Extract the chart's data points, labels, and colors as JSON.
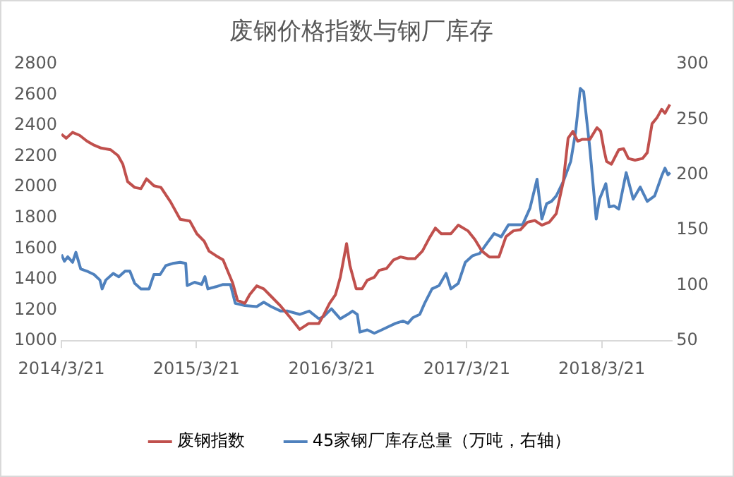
{
  "chart_data": {
    "type": "line",
    "title": "废钢价格指数与钢厂库存",
    "legend": "bottom",
    "grid": false,
    "marker": "none",
    "line_style": "solid",
    "xlim": [
      "2014-03-21",
      "2018-09-27"
    ],
    "xticks": [
      {
        "value": "2014-03-21",
        "label": "2014/3/21"
      },
      {
        "value": "2015-03-21",
        "label": "2015/3/21"
      },
      {
        "value": "2016-03-21",
        "label": "2016/3/21"
      },
      {
        "value": "2017-03-21",
        "label": "2017/3/21"
      },
      {
        "value": "2018-03-21",
        "label": "2018/3/21"
      }
    ],
    "ylim": [
      1000,
      2800
    ],
    "yticks": [
      1000,
      1200,
      1400,
      1600,
      1800,
      2000,
      2200,
      2400,
      2600,
      2800
    ],
    "y2lim": [
      50,
      300
    ],
    "y2ticks": [
      50,
      100,
      150,
      200,
      250,
      300
    ],
    "series": [
      {
        "name": "废钢指数",
        "color": "#c0504d",
        "x": [
          "2014-03-21",
          "2014-04-03",
          "2014-04-20",
          "2014-05-09",
          "2014-05-29",
          "2014-06-17",
          "2014-07-06",
          "2014-08-01",
          "2014-08-21",
          "2014-09-03",
          "2014-09-16",
          "2014-10-05",
          "2014-10-22",
          "2014-11-06",
          "2014-11-26",
          "2014-12-15",
          "2015-01-10",
          "2015-02-05",
          "2015-03-03",
          "2015-03-22",
          "2015-04-11",
          "2015-04-24",
          "2015-05-13",
          "2015-06-01",
          "2015-06-14",
          "2015-06-27",
          "2015-07-10",
          "2015-07-30",
          "2015-08-12",
          "2015-08-31",
          "2015-09-19",
          "2015-10-09",
          "2015-11-04",
          "2015-11-30",
          "2015-12-25",
          "2016-01-18",
          "2016-02-15",
          "2016-02-28",
          "2016-03-15",
          "2016-03-31",
          "2016-04-13",
          "2016-04-30",
          "2016-05-09",
          "2016-05-26",
          "2016-06-11",
          "2016-06-25",
          "2016-07-14",
          "2016-07-27",
          "2016-08-16",
          "2016-09-04",
          "2016-09-23",
          "2016-10-13",
          "2016-11-01",
          "2016-11-21",
          "2016-12-10",
          "2016-12-26",
          "2017-01-11",
          "2017-02-06",
          "2017-02-26",
          "2017-03-24",
          "2017-04-12",
          "2017-05-01",
          "2017-05-21",
          "2017-06-16",
          "2017-07-05",
          "2017-07-25",
          "2017-08-13",
          "2017-09-01",
          "2017-09-21",
          "2017-10-10",
          "2017-10-30",
          "2017-11-18",
          "2017-12-07",
          "2017-12-20",
          "2018-01-02",
          "2018-01-15",
          "2018-01-28",
          "2018-02-17",
          "2018-03-08",
          "2018-03-18",
          "2018-03-27",
          "2018-04-03",
          "2018-04-16",
          "2018-05-06",
          "2018-05-19",
          "2018-06-01",
          "2018-06-19",
          "2018-07-09",
          "2018-07-22",
          "2018-08-04",
          "2018-08-17",
          "2018-08-30",
          "2018-09-08",
          "2018-09-21"
        ],
        "values": [
          2344,
          2318,
          2356,
          2337,
          2299,
          2273,
          2254,
          2243,
          2205,
          2149,
          2036,
          1998,
          1990,
          2054,
          2009,
          1998,
          1904,
          1791,
          1780,
          1697,
          1648,
          1584,
          1554,
          1527,
          1452,
          1377,
          1264,
          1245,
          1301,
          1358,
          1339,
          1290,
          1226,
          1151,
          1075,
          1113,
          1113,
          1169,
          1245,
          1301,
          1414,
          1633,
          1490,
          1339,
          1339,
          1395,
          1414,
          1459,
          1471,
          1527,
          1546,
          1535,
          1535,
          1584,
          1670,
          1734,
          1697,
          1697,
          1753,
          1716,
          1659,
          1584,
          1546,
          1546,
          1678,
          1716,
          1723,
          1772,
          1783,
          1753,
          1772,
          1828,
          2036,
          2318,
          2363,
          2299,
          2311,
          2311,
          2386,
          2363,
          2243,
          2167,
          2149,
          2243,
          2250,
          2186,
          2175,
          2186,
          2224,
          2412,
          2450,
          2506,
          2480,
          2537
        ]
      },
      {
        "name": "45家钢厂库存总量（万吨，右轴）",
        "color": "#4f81bd",
        "axis": "y2",
        "x": [
          "2014-03-21",
          "2014-03-29",
          "2014-04-07",
          "2014-04-20",
          "2014-04-29",
          "2014-05-12",
          "2014-05-29",
          "2014-06-17",
          "2014-07-03",
          "2014-07-09",
          "2014-07-19",
          "2014-08-08",
          "2014-08-23",
          "2014-09-09",
          "2014-09-22",
          "2014-10-05",
          "2014-10-22",
          "2014-11-13",
          "2014-11-26",
          "2014-12-13",
          "2014-12-28",
          "2015-01-16",
          "2015-02-05",
          "2015-02-20",
          "2015-02-24",
          "2015-03-16",
          "2015-04-04",
          "2015-04-13",
          "2015-04-21",
          "2015-05-13",
          "2015-06-01",
          "2015-06-21",
          "2015-07-04",
          "2015-07-30",
          "2015-08-31",
          "2015-09-19",
          "2015-10-09",
          "2015-11-04",
          "2015-11-23",
          "2015-12-25",
          "2016-01-20",
          "2016-02-15",
          "2016-02-28",
          "2016-03-20",
          "2016-04-13",
          "2016-05-03",
          "2016-05-16",
          "2016-05-29",
          "2016-06-05",
          "2016-06-25",
          "2016-07-14",
          "2016-08-03",
          "2016-08-22",
          "2016-09-10",
          "2016-09-30",
          "2016-10-13",
          "2016-10-26",
          "2016-11-14",
          "2016-11-27",
          "2016-12-17",
          "2017-01-05",
          "2017-01-24",
          "2017-02-06",
          "2017-02-26",
          "2017-03-17",
          "2017-04-06",
          "2017-04-25",
          "2017-05-14",
          "2017-06-03",
          "2017-06-22",
          "2017-07-12",
          "2017-07-31",
          "2017-08-19",
          "2017-09-08",
          "2017-09-27",
          "2017-10-10",
          "2017-10-23",
          "2017-11-05",
          "2017-11-18",
          "2017-12-07",
          "2017-12-27",
          "2018-01-09",
          "2018-01-22",
          "2018-01-31",
          "2018-02-17",
          "2018-03-06",
          "2018-03-15",
          "2018-04-01",
          "2018-04-10",
          "2018-04-23",
          "2018-05-06",
          "2018-05-26",
          "2018-06-14",
          "2018-07-03",
          "2018-07-22",
          "2018-08-11",
          "2018-08-30",
          "2018-09-08",
          "2018-09-16",
          "2018-09-22"
        ],
        "values": [
          128,
          122,
          126,
          121,
          130,
          115,
          113,
          110,
          105,
          97,
          105,
          111,
          108,
          113,
          113,
          102,
          97,
          97,
          110,
          110,
          118,
          120,
          121,
          120,
          100,
          103,
          101,
          108,
          97,
          99,
          101,
          101,
          84,
          82,
          81,
          85,
          81,
          77,
          77,
          74,
          77,
          70,
          72,
          79,
          70,
          74,
          77,
          74,
          58,
          60,
          57,
          60,
          63,
          66,
          68,
          66,
          71,
          74,
          84,
          97,
          100,
          111,
          97,
          102,
          121,
          127,
          129,
          138,
          147,
          144,
          155,
          155,
          155,
          170,
          196,
          160,
          174,
          176,
          181,
          194,
          212,
          238,
          278,
          275,
          223,
          160,
          178,
          192,
          171,
          172,
          169,
          202,
          178,
          189,
          176,
          181,
          199,
          206,
          200,
          202
        ]
      }
    ]
  }
}
